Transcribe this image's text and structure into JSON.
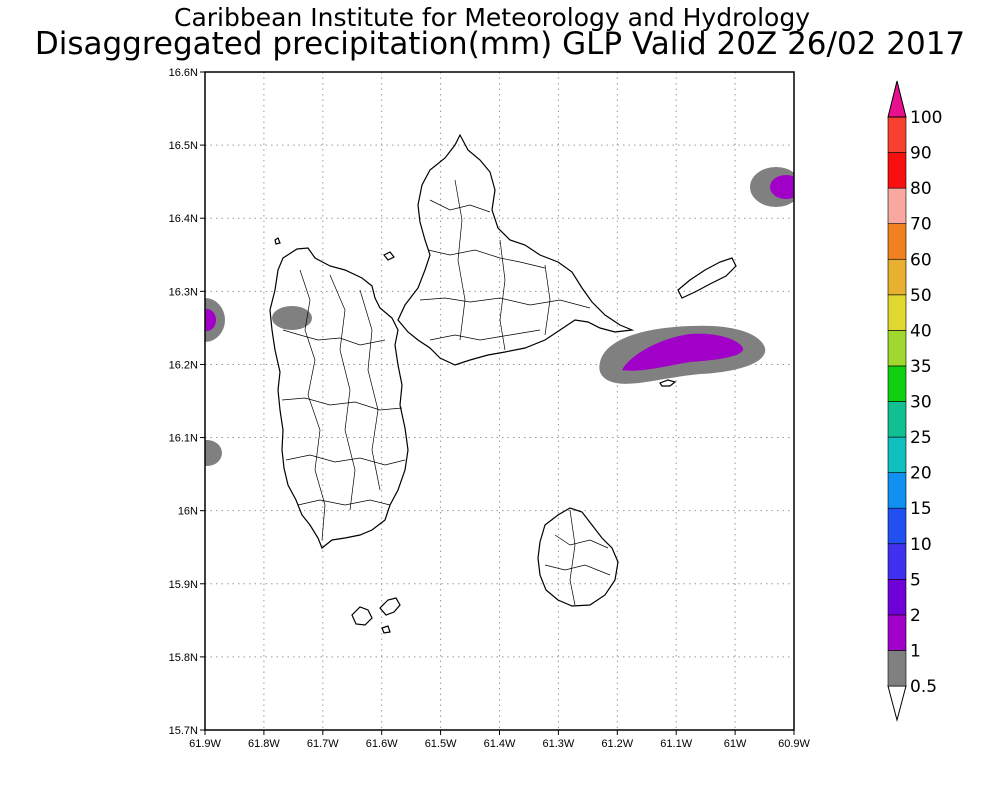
{
  "title": {
    "line1": "Caribbean Institute for Meteorology and Hydrology",
    "line2": "Disaggregated precipitation(mm) GLP Valid 20Z 26/02 2017"
  },
  "axes": {
    "x_ticks": [
      "61.9W",
      "61.8W",
      "61.7W",
      "61.6W",
      "61.5W",
      "61.4W",
      "61.3W",
      "61.2W",
      "61.1W",
      "61W",
      "60.9W"
    ],
    "y_ticks": [
      "16.6N",
      "16.5N",
      "16.4N",
      "16.3N",
      "16.2N",
      "16.1N",
      "16N",
      "15.9N",
      "15.8N",
      "15.7N"
    ],
    "lon_range": [
      -61.9,
      -60.9
    ],
    "lat_range": [
      15.7,
      16.6
    ],
    "grid": "dotted"
  },
  "colorbar": {
    "labels": [
      "0.5",
      "1",
      "2",
      "5",
      "10",
      "15",
      "20",
      "25",
      "30",
      "35",
      "40",
      "50",
      "60",
      "70",
      "80",
      "90",
      "100"
    ],
    "colors": [
      "#808080",
      "#a000c8",
      "#7000d8",
      "#4030f0",
      "#2050f0",
      "#1090f0",
      "#10c0c0",
      "#10c090",
      "#10d010",
      "#a0d830",
      "#e0d830",
      "#e8b030",
      "#f08020",
      "#f8a8a0",
      "#f81010",
      "#f84030",
      "#e8108c"
    ]
  },
  "map_features": {
    "land_outline": "#000000",
    "precip_light": "#808080",
    "precip_moderate": "#a000c8"
  }
}
